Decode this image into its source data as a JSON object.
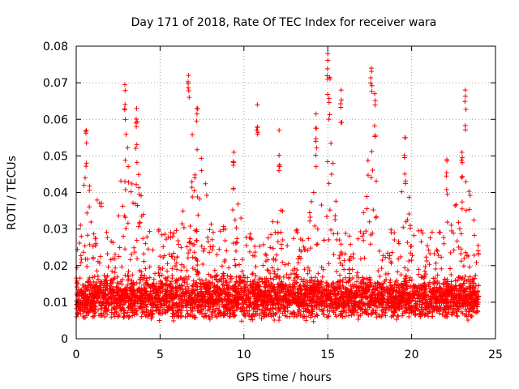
{
  "chart_data": {
    "type": "scatter",
    "title": "Day 171 of 2018, Rate Of TEC Index for receiver wara",
    "xlabel": "GPS time / hours",
    "ylabel": "ROTI / TECUs",
    "xlim": [
      0,
      25
    ],
    "ylim": [
      0,
      0.08
    ],
    "xticks": [
      0,
      5,
      10,
      15,
      20,
      25
    ],
    "xtick_labels": [
      "0",
      "5",
      "10",
      "15",
      "20",
      "25"
    ],
    "yticks": [
      0,
      0.01,
      0.02,
      0.03,
      0.04,
      0.05,
      0.06,
      0.07,
      0.08
    ],
    "ytick_labels": [
      "0",
      "0.01",
      "0.02",
      "0.03",
      "0.04",
      "0.05",
      "0.06",
      "0.07",
      "0.08"
    ],
    "grid": "dotted",
    "legend": "none",
    "marker": "plus",
    "color": "#ff0000",
    "x_data_range": [
      0,
      24
    ],
    "notable_points": [
      {
        "x": 0.6,
        "y": 0.057
      },
      {
        "x": 2.9,
        "y": 0.0695
      },
      {
        "x": 3.6,
        "y": 0.063
      },
      {
        "x": 6.7,
        "y": 0.072
      },
      {
        "x": 7.2,
        "y": 0.063
      },
      {
        "x": 9.4,
        "y": 0.051
      },
      {
        "x": 10.8,
        "y": 0.064
      },
      {
        "x": 12.1,
        "y": 0.057
      },
      {
        "x": 14.3,
        "y": 0.0615
      },
      {
        "x": 15.0,
        "y": 0.078
      },
      {
        "x": 15.1,
        "y": 0.0715
      },
      {
        "x": 15.8,
        "y": 0.068
      },
      {
        "x": 17.6,
        "y": 0.074
      },
      {
        "x": 17.8,
        "y": 0.067
      },
      {
        "x": 19.6,
        "y": 0.055
      },
      {
        "x": 22.1,
        "y": 0.049
      },
      {
        "x": 23.0,
        "y": 0.051
      },
      {
        "x": 23.2,
        "y": 0.068
      }
    ],
    "activity_peaks": [
      {
        "x": 0.7,
        "y": 0.05
      },
      {
        "x": 1.3,
        "y": 0.04
      },
      {
        "x": 2.9,
        "y": 0.06
      },
      {
        "x": 3.6,
        "y": 0.055
      },
      {
        "x": 6.8,
        "y": 0.06
      },
      {
        "x": 7.5,
        "y": 0.05
      },
      {
        "x": 9.4,
        "y": 0.045
      },
      {
        "x": 12.1,
        "y": 0.05
      },
      {
        "x": 14.3,
        "y": 0.055
      },
      {
        "x": 15.1,
        "y": 0.058
      },
      {
        "x": 17.6,
        "y": 0.058
      },
      {
        "x": 19.6,
        "y": 0.045
      },
      {
        "x": 22.5,
        "y": 0.04
      },
      {
        "x": 23.3,
        "y": 0.045
      }
    ]
  }
}
